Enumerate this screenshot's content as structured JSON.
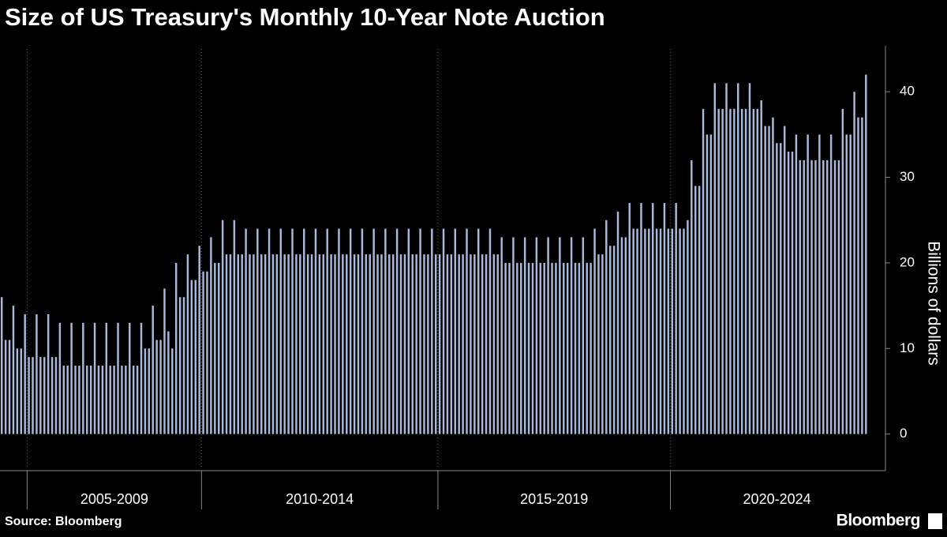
{
  "chart_data": {
    "type": "bar",
    "title": "Size of US Treasury's Monthly 10-Year Note Auction",
    "y_label": "Billions of dollars",
    "source": "Source: Bloomberg",
    "brand": "Bloomberg",
    "color": "#a9b9da",
    "ylim": [
      -4,
      45
    ],
    "yticks": [
      0,
      10,
      20,
      30,
      40
    ],
    "groups": [
      {
        "label": "2005-2009",
        "start": 7,
        "end": 52
      },
      {
        "label": "2010-2014",
        "start": 52,
        "end": 113
      },
      {
        "label": "2015-2019",
        "start": 113,
        "end": 173
      },
      {
        "label": "2020-2024",
        "start": 173,
        "end": 228
      }
    ],
    "values": [
      16,
      11,
      11,
      15,
      10,
      10,
      14,
      9,
      9,
      14,
      9,
      9,
      14,
      9,
      9,
      13,
      8,
      8,
      13,
      8,
      8,
      13,
      8,
      8,
      13,
      8,
      8,
      13,
      8,
      8,
      13,
      8,
      8,
      13,
      8,
      8,
      13,
      10,
      10,
      15,
      11,
      11,
      17,
      12,
      10,
      20,
      16,
      16,
      21,
      18,
      18,
      22,
      19,
      19,
      23,
      20,
      20,
      25,
      21,
      21,
      25,
      21,
      21,
      24,
      21,
      21,
      24,
      21,
      21,
      24,
      21,
      21,
      24,
      21,
      21,
      24,
      21,
      21,
      24,
      21,
      21,
      24,
      21,
      21,
      24,
      21,
      21,
      24,
      21,
      21,
      24,
      21,
      21,
      24,
      21,
      21,
      24,
      21,
      21,
      24,
      21,
      21,
      24,
      21,
      21,
      24,
      21,
      21,
      24,
      21,
      21,
      24,
      21,
      21,
      24,
      21,
      21,
      24,
      21,
      21,
      24,
      21,
      21,
      24,
      21,
      21,
      24,
      21,
      21,
      23,
      20,
      20,
      23,
      20,
      20,
      23,
      20,
      20,
      23,
      20,
      20,
      23,
      20,
      20,
      23,
      20,
      20,
      23,
      20,
      20,
      23,
      20,
      20,
      24,
      21,
      21,
      25,
      22,
      22,
      26,
      23,
      23,
      27,
      24,
      24,
      27,
      24,
      24,
      27,
      24,
      24,
      27,
      24,
      24,
      27,
      24,
      24,
      25,
      32,
      29,
      29,
      38,
      35,
      35,
      41,
      38,
      38,
      41,
      38,
      38,
      41,
      38,
      38,
      41,
      38,
      38,
      39,
      36,
      36,
      37,
      34,
      34,
      36,
      33,
      33,
      35,
      32,
      32,
      35,
      32,
      32,
      35,
      32,
      32,
      35,
      32,
      32,
      38,
      35,
      35,
      40,
      37,
      37,
      42
    ]
  }
}
